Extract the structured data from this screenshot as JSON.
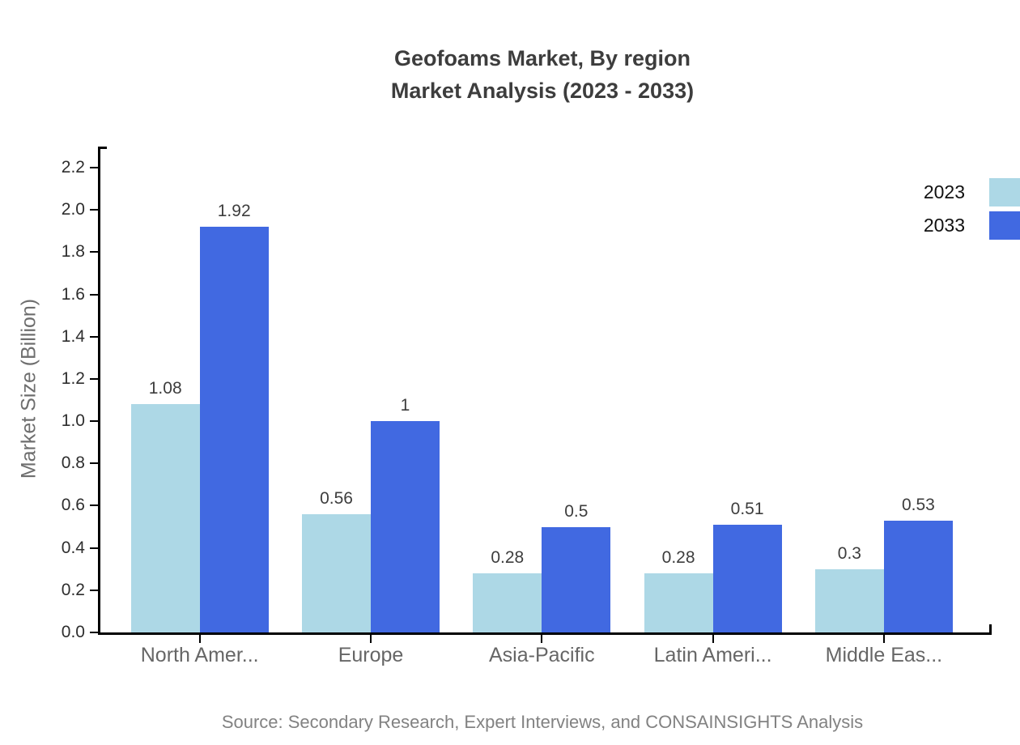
{
  "title": {
    "line1": "Geofoams Market, By region",
    "line2": "Market Analysis (2023 - 2033)"
  },
  "legend": {
    "items": [
      {
        "label": "2023",
        "color": "#ADD8E6"
      },
      {
        "label": "2033",
        "color": "#4169E1"
      }
    ]
  },
  "chart_data": {
    "type": "bar",
    "title": "Geofoams Market, By region Market Analysis (2023 - 2033)",
    "categories": [
      "North Amer...",
      "Europe",
      "Asia-Pacific",
      "Latin Ameri...",
      "Middle Eas..."
    ],
    "series": [
      {
        "name": "2023",
        "color": "#ADD8E6",
        "values": [
          1.08,
          0.56,
          0.28,
          0.28,
          0.3
        ],
        "labels": [
          "1.08",
          "0.56",
          "0.28",
          "0.28",
          "0.3"
        ]
      },
      {
        "name": "2033",
        "color": "#4169E1",
        "values": [
          1.92,
          1,
          0.5,
          0.51,
          0.53
        ],
        "labels": [
          "1.92",
          "1",
          "0.5",
          "0.51",
          "0.53"
        ]
      }
    ],
    "xlabel": "",
    "ylabel": "Market Size (Billion)",
    "y_ticks": [
      "0.0",
      "0.2",
      "0.4",
      "0.6",
      "0.8",
      "1.0",
      "1.2",
      "1.4",
      "1.6",
      "1.8",
      "2.0",
      "2.2"
    ],
    "y_tick_step": 0.2,
    "ylim": [
      0,
      2.3
    ],
    "grid": false,
    "legend_position": "top-right"
  },
  "source": "Source: Secondary Research, Expert Interviews, and CONSAINSIGHTS Analysis"
}
